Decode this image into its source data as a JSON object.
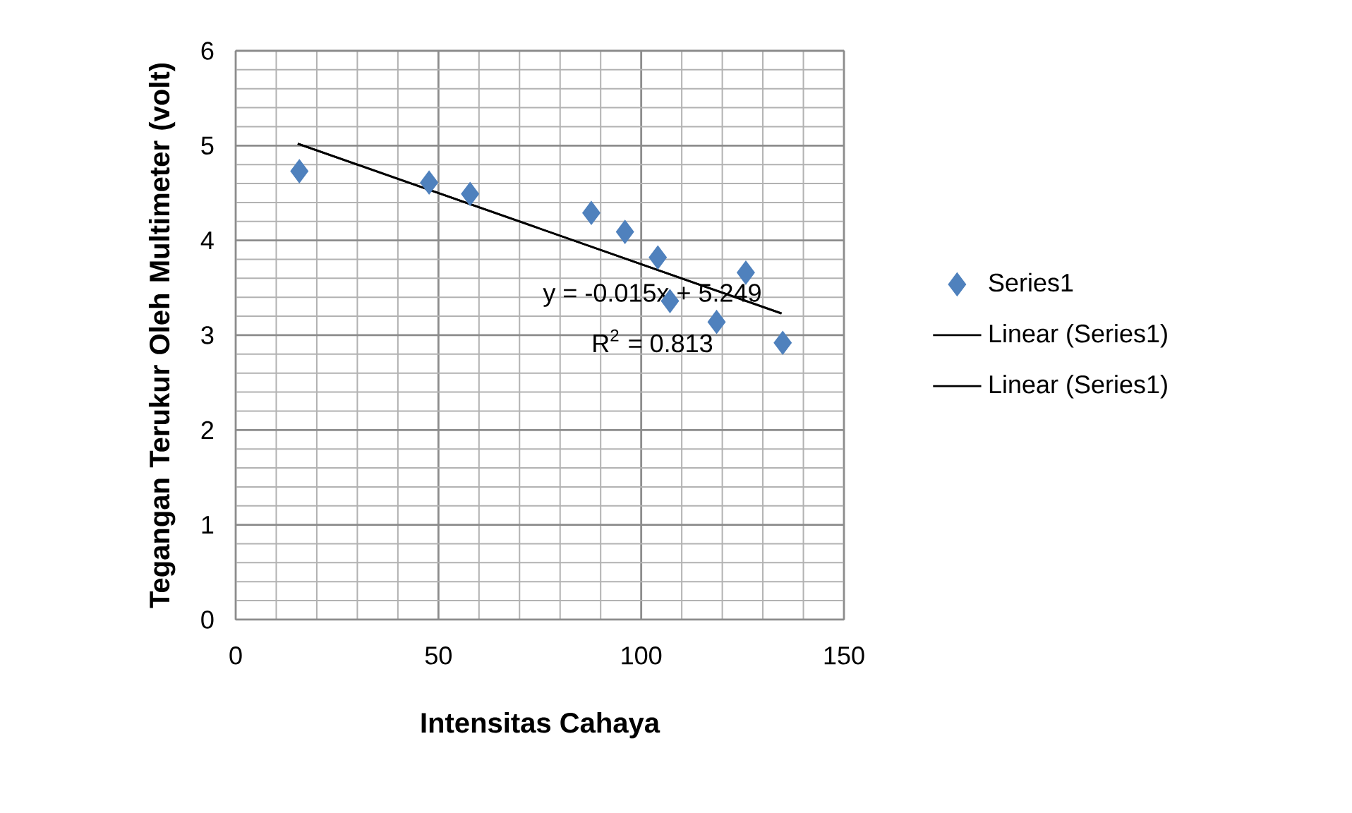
{
  "chart_data": {
    "type": "scatter",
    "xlabel": "Intensitas Cahaya",
    "ylabel": "Tegangan Terukur Oleh Multimeter (volt)",
    "xlim": [
      0,
      150
    ],
    "xticks": [
      0,
      50,
      100,
      150
    ],
    "ylim": [
      0,
      6
    ],
    "yticks": [
      0,
      1,
      2,
      3,
      4,
      5,
      6
    ],
    "grid": true,
    "legend": "right",
    "annotations": [
      "y = -0.015x + 5.249",
      "R$^{2}$ = 0.813"
    ],
    "series": [
      {
        "name": "Series1",
        "color": "#4f81bd",
        "marker": "diamond",
        "x": [
          15.7,
          47.7,
          57.8,
          87.7,
          96.0,
          104.1,
          107.1,
          118.6,
          125.8,
          134.9
        ],
        "values": [
          4.73,
          4.61,
          4.49,
          4.29,
          4.09,
          3.82,
          3.36,
          3.14,
          3.66,
          2.92
        ]
      },
      {
        "type": "line",
        "name": "Linear (Series1)",
        "color": "#000000",
        "x": [
          15.3,
          134.6
        ],
        "values": [
          5.02,
          3.23
        ]
      },
      {
        "type": "line",
        "name": "Linear (Series1)",
        "color": "#000000",
        "x": [
          15.3,
          134.6
        ],
        "values": [
          5.02,
          3.23
        ]
      }
    ]
  }
}
